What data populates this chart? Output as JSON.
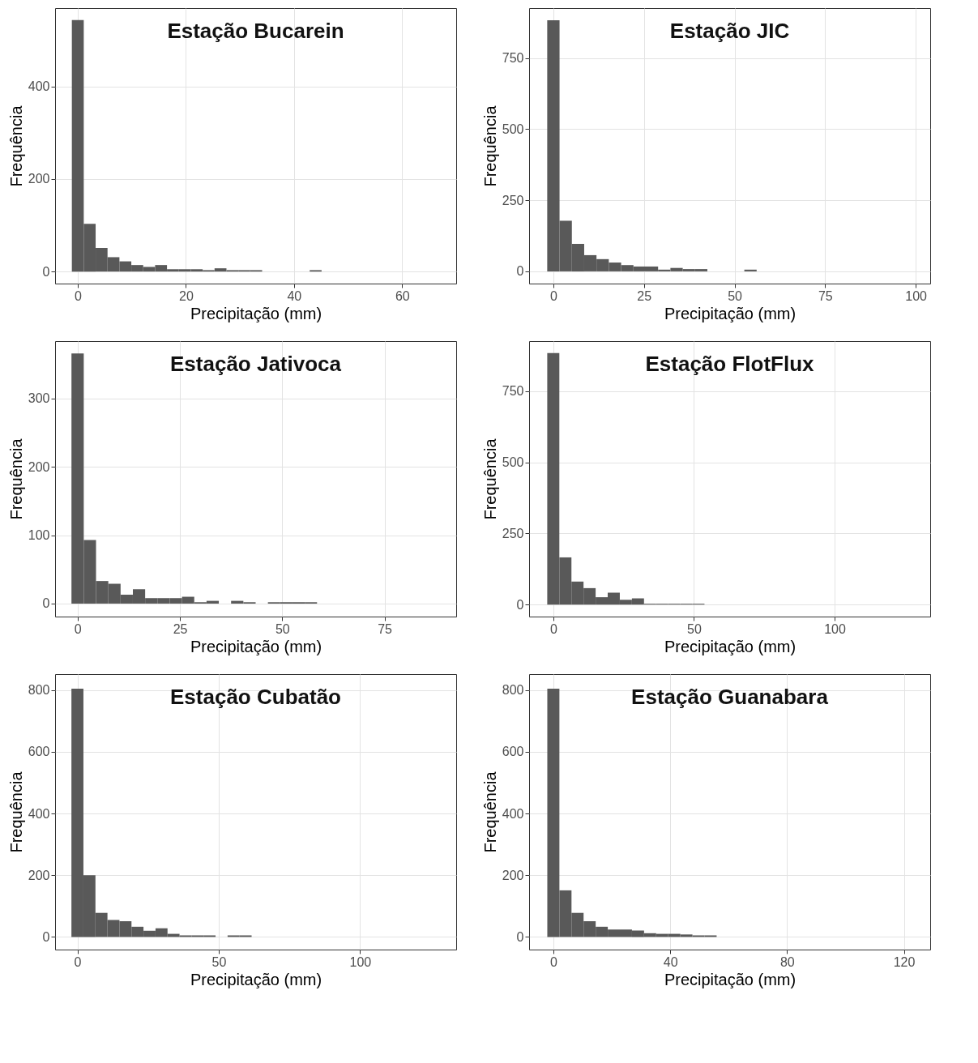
{
  "chart_data": [
    {
      "type": "histogram",
      "title": "Estação Bucarein",
      "xlabel": "Precipitação (mm)",
      "ylabel": "Frequência",
      "color": "#595959",
      "grid": true,
      "xlim": [
        -4.2,
        70
      ],
      "ylim": [
        -26,
        569
      ],
      "xticks": [
        0,
        20,
        40,
        60
      ],
      "yticks": [
        0,
        200,
        400
      ],
      "bins": [
        -1.1,
        1.1,
        3.3,
        5.5,
        7.7,
        9.9,
        12.1,
        14.3,
        16.5,
        18.7,
        20.9,
        23.1,
        25.3,
        27.5,
        29.7,
        31.9,
        34.1,
        36.3,
        38.5,
        40.7,
        42.9,
        45.1
      ],
      "values": [
        543,
        103,
        51,
        31,
        22,
        14,
        10,
        14,
        5,
        5,
        5,
        3,
        7,
        3,
        3,
        3,
        0,
        0,
        0,
        0,
        3
      ]
    },
    {
      "type": "histogram",
      "title": "Estação JIC",
      "xlabel": "Precipitação (mm)",
      "ylabel": "Frequência",
      "color": "#595959",
      "grid": true,
      "xlim": [
        -6.7,
        104
      ],
      "ylim": [
        -43,
        926
      ],
      "xticks": [
        0,
        25,
        50,
        75,
        100
      ],
      "yticks": [
        0,
        250,
        500,
        750
      ],
      "bins": [
        -1.7,
        1.7,
        5.1,
        8.5,
        11.9,
        15.3,
        18.7,
        22.1,
        25.5,
        28.9,
        32.3,
        35.7,
        39.1,
        42.5,
        45.9,
        49.3,
        52.7,
        56.1
      ],
      "values": [
        883,
        178,
        97,
        57,
        43,
        31,
        22,
        17,
        17,
        6,
        12,
        8,
        8,
        0,
        0,
        0,
        6
      ]
    },
    {
      "type": "histogram",
      "title": "Estação Jativoca",
      "xlabel": "Precipitação (mm)",
      "ylabel": "Frequência",
      "color": "#595959",
      "grid": true,
      "xlim": [
        -5.5,
        92.5
      ],
      "ylim": [
        -19,
        384
      ],
      "xticks": [
        0,
        25,
        50,
        75
      ],
      "yticks": [
        0,
        100,
        200,
        300
      ],
      "bins": [
        -1.5,
        1.5,
        4.5,
        7.5,
        10.5,
        13.5,
        16.5,
        19.5,
        22.5,
        25.5,
        28.5,
        31.5,
        34.5,
        37.5,
        40.5,
        43.5,
        46.5,
        49.5,
        52.5,
        55.5,
        58.5
      ],
      "values": [
        366,
        93,
        33,
        29,
        13,
        21,
        8,
        8,
        8,
        10,
        2,
        4,
        0,
        4,
        2,
        0,
        2,
        2,
        2,
        2
      ]
    },
    {
      "type": "histogram",
      "title": "Estação FlotFlux",
      "xlabel": "Precipitação (mm)",
      "ylabel": "Frequência",
      "color": "#595959",
      "grid": true,
      "xlim": [
        -8.6,
        134
      ],
      "ylim": [
        -42,
        926
      ],
      "xticks": [
        0,
        50,
        100
      ],
      "yticks": [
        0,
        250,
        500,
        750
      ],
      "bins": [
        -2.15,
        2.15,
        6.45,
        10.75,
        15.05,
        19.35,
        23.65,
        27.95,
        32.25,
        36.55,
        40.85,
        45.15,
        49.45,
        53.75
      ],
      "values": [
        884,
        166,
        81,
        58,
        26,
        42,
        17,
        22,
        3,
        3,
        3,
        3,
        3
      ]
    },
    {
      "type": "histogram",
      "title": "Estação Cubatão",
      "xlabel": "Precipitação (mm)",
      "ylabel": "Frequência",
      "color": "#595959",
      "grid": true,
      "xlim": [
        -7.9,
        134
      ],
      "ylim": [
        -41,
        852
      ],
      "xticks": [
        0,
        50,
        100
      ],
      "yticks": [
        0,
        200,
        400,
        600,
        800
      ],
      "bins": [
        -2.125,
        2.125,
        6.375,
        10.625,
        14.875,
        19.125,
        23.375,
        27.625,
        31.875,
        36.125,
        40.375,
        44.625,
        48.875,
        53.125,
        57.375,
        61.625
      ],
      "values": [
        805,
        200,
        78,
        55,
        51,
        33,
        20,
        28,
        10,
        5,
        5,
        5,
        0,
        5,
        5
      ]
    },
    {
      "type": "histogram",
      "title": "Estação Guanabara",
      "xlabel": "Precipitação (mm)",
      "ylabel": "Frequência",
      "color": "#595959",
      "grid": true,
      "xlim": [
        -8.3,
        129
      ],
      "ylim": [
        -41,
        852
      ],
      "xticks": [
        0,
        40,
        80,
        120
      ],
      "yticks": [
        0,
        200,
        400,
        600,
        800
      ],
      "bins": [
        -2.07,
        2.07,
        6.21,
        10.35,
        14.49,
        18.63,
        22.77,
        26.91,
        31.05,
        35.19,
        39.33,
        43.47,
        47.61,
        51.75,
        55.89
      ],
      "values": [
        805,
        151,
        78,
        51,
        33,
        24,
        24,
        21,
        12,
        10,
        10,
        8,
        5,
        5
      ]
    }
  ]
}
